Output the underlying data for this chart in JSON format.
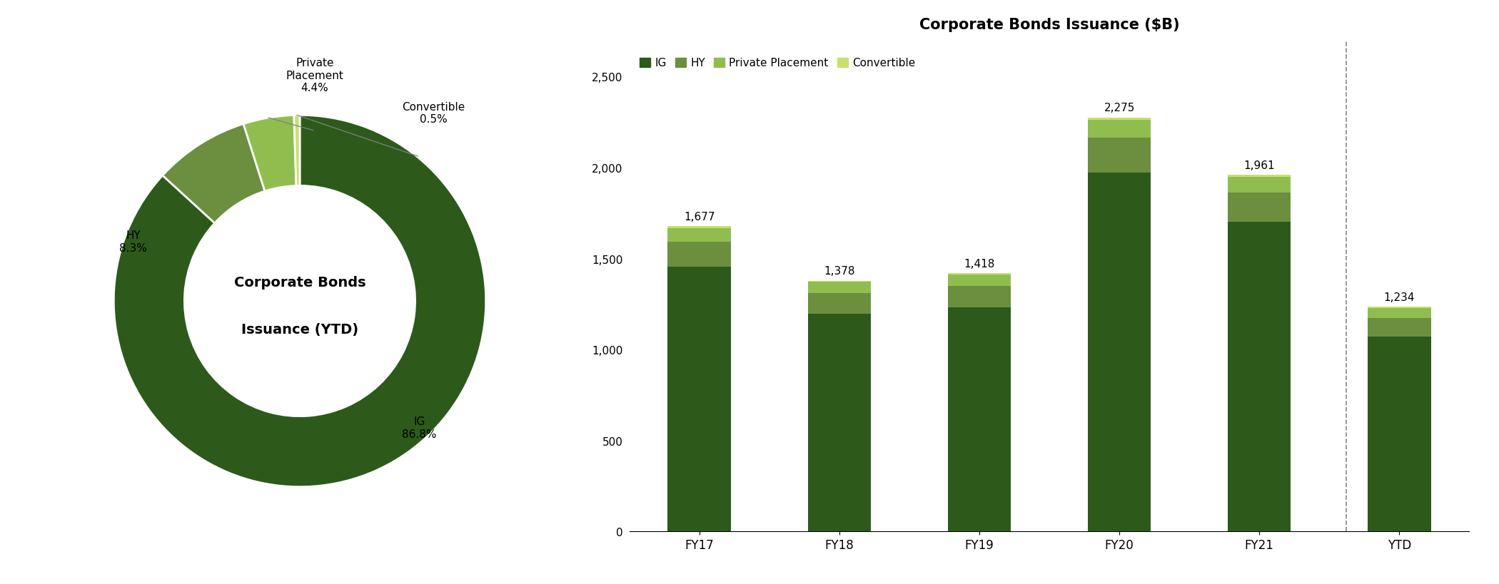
{
  "pie_values": [
    86.8,
    8.3,
    4.4,
    0.5
  ],
  "pie_colors": [
    "#2d5a1b",
    "#6b8f3e",
    "#8fbe4f",
    "#c8e06e"
  ],
  "pie_center_text1": "Corporate Bonds",
  "pie_center_text2": "Issuance (YTD)",
  "bar_categories": [
    "FY17",
    "FY18",
    "FY19",
    "FY20",
    "FY21",
    "YTD"
  ],
  "bar_totals": [
    1677,
    1378,
    1418,
    2275,
    1961,
    1234
  ],
  "bar_IG": [
    1455,
    1196,
    1230,
    1974,
    1701,
    1070
  ],
  "bar_HY": [
    139,
    114,
    118,
    189,
    163,
    102
  ],
  "bar_PP": [
    74,
    61,
    62,
    100,
    86,
    54
  ],
  "bar_Conv": [
    9,
    7,
    8,
    12,
    11,
    8
  ],
  "bar_colors": {
    "IG": "#2d5a1b",
    "HY": "#6b8f3e",
    "PP": "#8fbe4f",
    "Conv": "#c8e06e"
  },
  "bar_title": "Corporate Bonds Issuance ($B)",
  "bar_legend_labels": [
    "IG",
    "HY",
    "Private Placement",
    "Convertible"
  ],
  "ylim": [
    0,
    2700
  ],
  "yticks": [
    0,
    500,
    1000,
    1500,
    2000,
    2500
  ],
  "background_color": "#ffffff",
  "title_fontsize": 15,
  "tick_fontsize": 11
}
